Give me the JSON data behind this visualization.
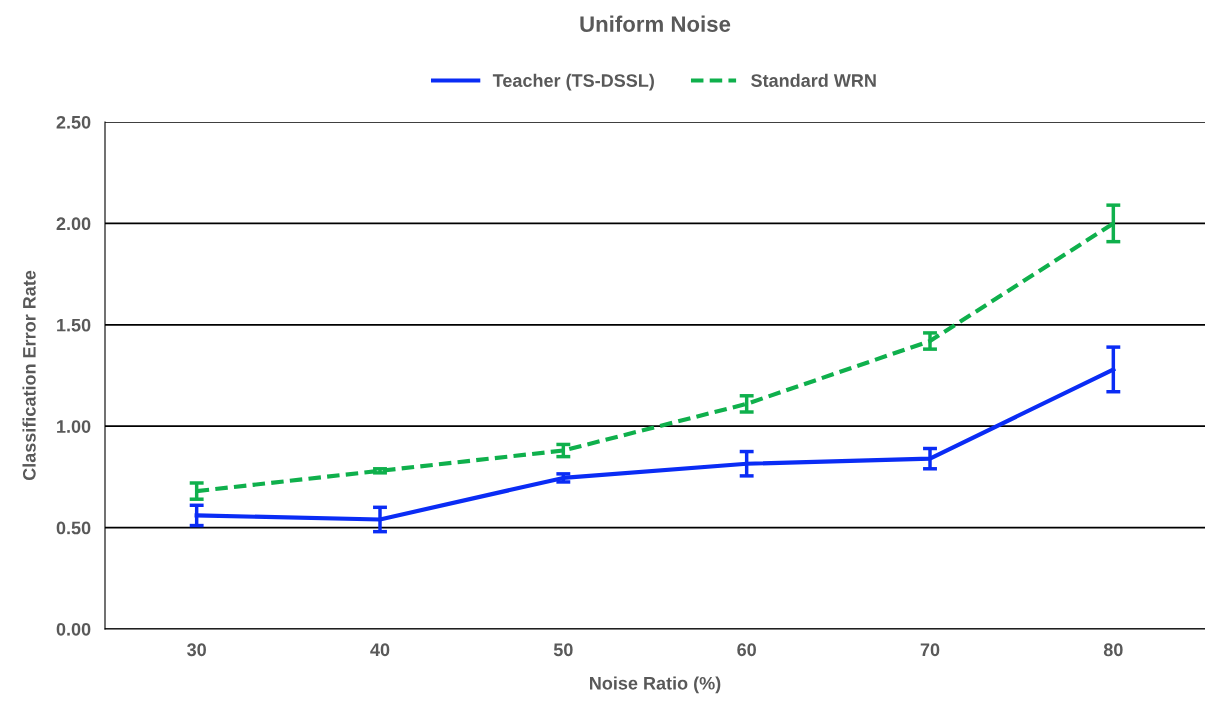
{
  "chart_data": {
    "type": "line",
    "title": "Uniform Noise",
    "xlabel": "Noise Ratio (%)",
    "ylabel": "Classification Error Rate",
    "categories": [
      "30",
      "40",
      "50",
      "60",
      "70",
      "80"
    ],
    "series": [
      {
        "name": "Teacher (TS-DSSL)",
        "color": "#0a2cf5",
        "values": [
          0.56,
          0.54,
          0.745,
          0.815,
          0.84,
          1.28
        ],
        "errors": [
          0.05,
          0.06,
          0.02,
          0.06,
          0.05,
          0.11
        ],
        "line_style": "solid"
      },
      {
        "name": "Standard WRN",
        "color": "#0fb04c",
        "values": [
          0.68,
          0.78,
          0.88,
          1.11,
          1.42,
          2.0
        ],
        "errors": [
          0.04,
          0.01,
          0.03,
          0.04,
          0.04,
          0.09
        ],
        "line_style": "dashed"
      }
    ],
    "ylim": [
      0,
      2.5
    ],
    "yticks": [
      {
        "value": 0,
        "label": "0.00"
      },
      {
        "value": 0.5,
        "label": "0.50"
      },
      {
        "value": 1,
        "label": "1.00"
      },
      {
        "value": 1.5,
        "label": "1.50"
      },
      {
        "value": 2,
        "label": "2.00"
      },
      {
        "value": 2.5,
        "label": "2.50"
      }
    ],
    "grid": "y",
    "legend": "top",
    "marker": "none"
  }
}
